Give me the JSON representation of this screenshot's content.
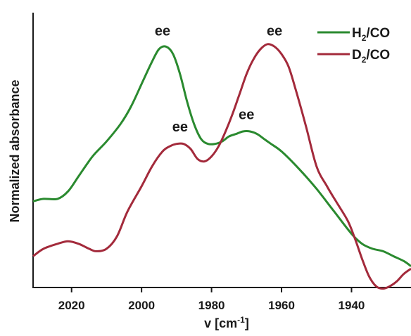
{
  "chart_data": {
    "type": "line",
    "xlabel": "v [cm",
    "xlabel_sup": "-1",
    "xlabel_end": "]",
    "ylabel": "Normalized absorbance",
    "xlim": [
      2031,
      1923
    ],
    "x_reversed": true,
    "ylim": [
      0,
      1
    ],
    "y_ticks_shown": false,
    "grid": false,
    "x_ticks": [
      2020,
      2000,
      1980,
      1960,
      1940
    ],
    "legend_position": "top-right",
    "series": [
      {
        "name": "H2/CO",
        "name_main": "H",
        "name_sub": "2",
        "name_rest": "/CO",
        "color": "#2a8a2f",
        "x": [
          2031,
          2028,
          2024,
          2021,
          2018,
          2014,
          2010,
          2006,
          2003,
          2000,
          1997,
          1995,
          1993,
          1991,
          1989,
          1987,
          1985,
          1983,
          1981,
          1979,
          1977,
          1975,
          1973,
          1971,
          1969,
          1967,
          1965,
          1963,
          1960,
          1955,
          1950,
          1945,
          1940,
          1937,
          1934,
          1931,
          1928,
          1925,
          1923
        ],
        "y": [
          0.32,
          0.33,
          0.33,
          0.36,
          0.42,
          0.5,
          0.56,
          0.63,
          0.7,
          0.79,
          0.88,
          0.93,
          0.94,
          0.91,
          0.83,
          0.72,
          0.63,
          0.57,
          0.55,
          0.55,
          0.56,
          0.58,
          0.59,
          0.6,
          0.6,
          0.59,
          0.57,
          0.55,
          0.52,
          0.45,
          0.37,
          0.28,
          0.19,
          0.15,
          0.13,
          0.12,
          0.1,
          0.08,
          0.06
        ]
      },
      {
        "name": "D2/CO",
        "name_main": "D",
        "name_sub": "2",
        "name_rest": "/CO",
        "color": "#a32a3b",
        "x": [
          2031,
          2028,
          2024,
          2021,
          2018,
          2015,
          2013,
          2010,
          2007,
          2004,
          2000,
          1997,
          1994,
          1992,
          1990,
          1988,
          1986,
          1984,
          1982,
          1980,
          1978,
          1976,
          1974,
          1972,
          1970,
          1968,
          1966,
          1964,
          1962,
          1960,
          1958,
          1956,
          1953,
          1950,
          1947,
          1944,
          1941,
          1939,
          1937,
          1935,
          1933,
          1931,
          1929,
          1927,
          1925,
          1923
        ],
        "y": [
          0.1,
          0.13,
          0.15,
          0.16,
          0.15,
          0.13,
          0.12,
          0.13,
          0.18,
          0.28,
          0.38,
          0.46,
          0.52,
          0.54,
          0.55,
          0.55,
          0.53,
          0.49,
          0.48,
          0.5,
          0.54,
          0.6,
          0.67,
          0.75,
          0.83,
          0.89,
          0.93,
          0.95,
          0.94,
          0.91,
          0.86,
          0.77,
          0.62,
          0.46,
          0.38,
          0.31,
          0.24,
          0.17,
          0.09,
          0.02,
          -0.02,
          -0.03,
          -0.02,
          0.0,
          0.03,
          0.05
        ]
      }
    ],
    "annotations": [
      {
        "text": "ee",
        "x": 1994,
        "y": 0.985
      },
      {
        "text": "ee",
        "x": 1962,
        "y": 0.985
      },
      {
        "text": "ee",
        "x": 1989,
        "y": 0.6
      },
      {
        "text": "ee",
        "x": 1970,
        "y": 0.65
      }
    ]
  }
}
